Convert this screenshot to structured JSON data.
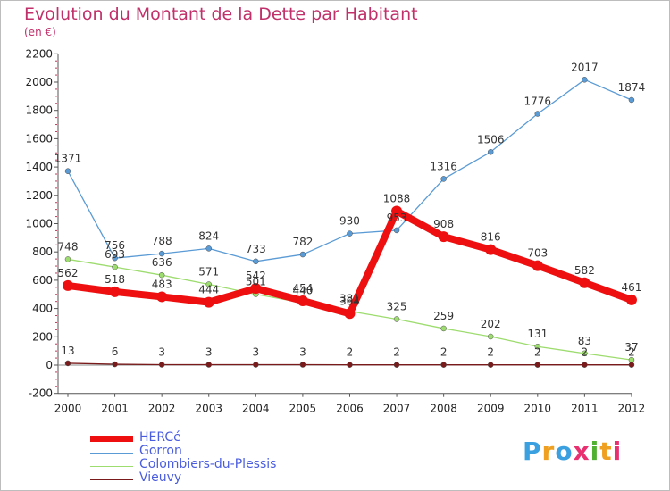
{
  "title": "Evolution du Montant de la Dette par Habitant",
  "subtitle": "(en €)",
  "logo": "Proxiti",
  "colors": {
    "title": "#c0306a",
    "axis": "#555555",
    "grid_tick": "#bd3a5e"
  },
  "chart_data": {
    "type": "line",
    "title": "Evolution du Montant de la Dette par Habitant",
    "subtitle": "(en €)",
    "xlabel": "",
    "ylabel": "",
    "categories": [
      "2000",
      "2001",
      "2002",
      "2003",
      "2004",
      "2005",
      "2006",
      "2007",
      "2008",
      "2009",
      "2010",
      "2011",
      "2012"
    ],
    "y_ticks": [
      -200,
      0,
      200,
      400,
      600,
      800,
      1000,
      1200,
      1400,
      1600,
      1800,
      2000,
      2200
    ],
    "ylim": [
      -200,
      2200
    ],
    "grid": false,
    "legend_position": "bottom-left",
    "series": [
      {
        "name": "HERCé",
        "color": "#ee1010",
        "values": [
          562,
          518,
          483,
          444,
          542,
          454,
          364,
          1088,
          908,
          816,
          703,
          582,
          461
        ],
        "labels": [
          "562",
          "518",
          "483",
          "444",
          "542",
          "454",
          "364",
          "1088",
          "908",
          "816",
          "703",
          "582",
          "461"
        ]
      },
      {
        "name": "Gorron",
        "color": "#5b9bd5",
        "values": [
          1371,
          756,
          788,
          824,
          733,
          782,
          930,
          953,
          1316,
          1506,
          1776,
          2017,
          1874
        ],
        "labels": [
          "1371",
          "756",
          "788",
          "824",
          "733",
          "782",
          "930",
          "953",
          "1316",
          "1506",
          "1776",
          "2017",
          "1874"
        ]
      },
      {
        "name": "Colombiers-du-Plessis",
        "color": "#9ddc6e",
        "values": [
          748,
          693,
          636,
          571,
          501,
          440,
          381,
          325,
          259,
          202,
          131,
          83,
          37
        ],
        "labels": [
          "748",
          "693",
          "636",
          "571",
          "501",
          "440",
          "381",
          "325",
          "259",
          "202",
          "131",
          "83",
          "37"
        ]
      },
      {
        "name": "Vieuvy",
        "color": "#7a1a1a",
        "values": [
          13,
          6,
          3,
          3,
          3,
          3,
          2,
          2,
          2,
          2,
          2,
          2,
          2
        ],
        "labels": [
          "13",
          "6",
          "3",
          "3",
          "3",
          "3",
          "2",
          "2",
          "2",
          "2",
          "2",
          "2",
          "2"
        ]
      }
    ]
  }
}
